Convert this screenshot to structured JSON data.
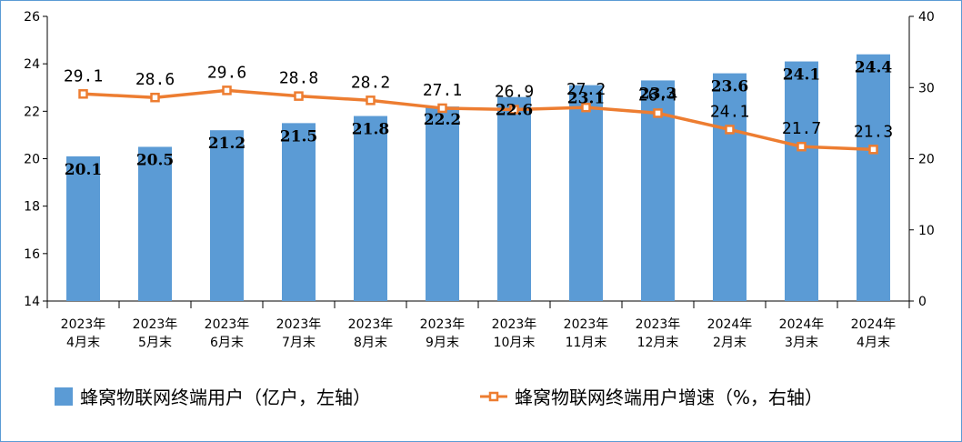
{
  "chart_data": {
    "type": "bar",
    "categories": [
      [
        "2023年",
        "4月末"
      ],
      [
        "2023年",
        "5月末"
      ],
      [
        "2023年",
        "6月末"
      ],
      [
        "2023年",
        "7月末"
      ],
      [
        "2023年",
        "8月末"
      ],
      [
        "2023年",
        "9月末"
      ],
      [
        "2023年",
        "10月末"
      ],
      [
        "2023年",
        "11月末"
      ],
      [
        "2023年",
        "12月末"
      ],
      [
        "2024年",
        "2月末"
      ],
      [
        "2024年",
        "3月末"
      ],
      [
        "2024年",
        "4月末"
      ]
    ],
    "series": [
      {
        "name": "蜂窝物联网终端用户（亿户，左轴）",
        "type": "bar",
        "axis": "left",
        "color": "#5b9bd5",
        "values": [
          20.1,
          20.5,
          21.2,
          21.5,
          21.8,
          22.2,
          22.6,
          23.1,
          23.3,
          23.6,
          24.1,
          24.4
        ],
        "labels": [
          "20.1",
          "20.5",
          "21.2",
          "21.5",
          "21.8",
          "22.2",
          "22.6",
          "23.1",
          "23.3",
          "23.6",
          "24.1",
          "24.4"
        ]
      },
      {
        "name": "蜂窝物联网终端用户增速（%，右轴）",
        "type": "line",
        "axis": "right",
        "color": "#ed7d31",
        "values": [
          29.1,
          28.6,
          29.6,
          28.8,
          28.2,
          27.1,
          26.9,
          27.2,
          26.4,
          24.1,
          21.7,
          21.3
        ],
        "labels": [
          "29.1",
          "28.6",
          "29.6",
          "28.8",
          "28.2",
          "27.1",
          "26.9",
          "27.2",
          "26.4",
          "24.1",
          "21.7",
          "21.3"
        ]
      }
    ],
    "left_axis": {
      "ylim": [
        14,
        26
      ],
      "ticks": [
        "14",
        "16",
        "18",
        "20",
        "22",
        "24",
        "26"
      ]
    },
    "right_axis": {
      "ylim": [
        0,
        40
      ],
      "ticks": [
        "0",
        "10",
        "20",
        "30",
        "40"
      ]
    },
    "grid": false,
    "legend_position": "bottom"
  }
}
